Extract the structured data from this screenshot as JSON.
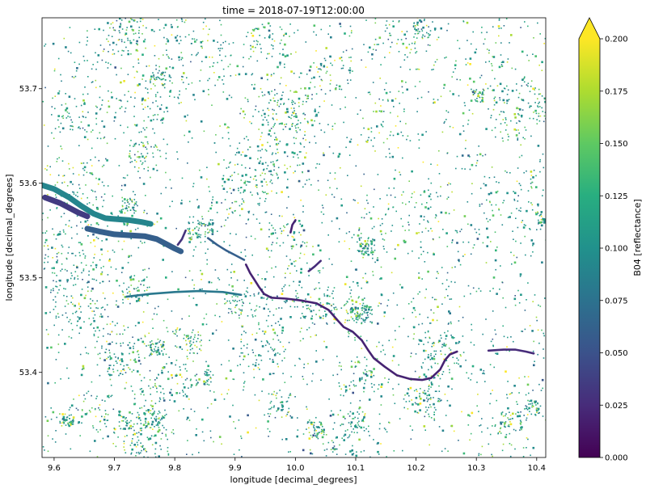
{
  "chart_data": {
    "type": "heatmap",
    "title": "time = 2018-07-19T12:00:00",
    "xlabel": "longitude [decimal_degrees]",
    "ylabel": "longitude [decimal_degrees]",
    "xlim": [
      9.58,
      10.415
    ],
    "ylim": [
      53.31,
      53.775
    ],
    "xticks": [
      {
        "value": 9.6,
        "label": "9.6"
      },
      {
        "value": 9.7,
        "label": "9.7"
      },
      {
        "value": 9.8,
        "label": "9.8"
      },
      {
        "value": 9.9,
        "label": "9.9"
      },
      {
        "value": 10.0,
        "label": "10.0"
      },
      {
        "value": 10.1,
        "label": "10.1"
      },
      {
        "value": 10.2,
        "label": "10.2"
      },
      {
        "value": 10.3,
        "label": "10.3"
      },
      {
        "value": 10.4,
        "label": "10.4"
      }
    ],
    "yticks": [
      {
        "value": 53.4,
        "label": "53.4"
      },
      {
        "value": 53.5,
        "label": "53.5"
      },
      {
        "value": 53.6,
        "label": "53.6"
      },
      {
        "value": 53.7,
        "label": "53.7"
      }
    ],
    "colorbar": {
      "label": "B04 [reflectance]",
      "colormap": "viridis",
      "vmin": 0.0,
      "vmax": 0.2,
      "extend": "max",
      "ticks": [
        {
          "value": 0.0,
          "label": "0.000"
        },
        {
          "value": 0.025,
          "label": "0.025"
        },
        {
          "value": 0.05,
          "label": "0.050"
        },
        {
          "value": 0.075,
          "label": "0.075"
        },
        {
          "value": 0.1,
          "label": "0.100"
        },
        {
          "value": 0.125,
          "label": "0.125"
        },
        {
          "value": 0.15,
          "label": "0.150"
        },
        {
          "value": 0.175,
          "label": "0.175"
        },
        {
          "value": 0.2,
          "label": "0.200"
        }
      ]
    },
    "features": [
      {
        "kind": "band",
        "value": 0.09,
        "points": [
          [
            9.58,
            53.598
          ],
          [
            9.6,
            53.594
          ],
          [
            9.625,
            53.585
          ],
          [
            9.645,
            53.576
          ],
          [
            9.665,
            53.568
          ],
          [
            9.685,
            53.563
          ],
          [
            9.705,
            53.562
          ],
          [
            9.725,
            53.561
          ],
          [
            9.745,
            53.559
          ],
          [
            9.76,
            53.557
          ]
        ]
      },
      {
        "kind": "band",
        "value": 0.035,
        "points": [
          [
            9.585,
            53.585
          ],
          [
            9.61,
            53.579
          ],
          [
            9.625,
            53.574
          ],
          [
            9.64,
            53.569
          ],
          [
            9.655,
            53.565
          ]
        ]
      },
      {
        "kind": "band",
        "value": 0.06,
        "points": [
          [
            9.655,
            53.552
          ],
          [
            9.675,
            53.549
          ],
          [
            9.7,
            53.546
          ],
          [
            9.725,
            53.545
          ],
          [
            9.75,
            53.544
          ],
          [
            9.77,
            53.541
          ],
          [
            9.785,
            53.536
          ],
          [
            9.8,
            53.531
          ],
          [
            9.81,
            53.528
          ]
        ]
      },
      {
        "kind": "line",
        "value": 0.03,
        "points": [
          [
            9.805,
            53.535
          ],
          [
            9.812,
            53.541
          ],
          [
            9.818,
            53.55
          ]
        ]
      },
      {
        "kind": "line",
        "value": 0.06,
        "points": [
          [
            9.855,
            53.542
          ],
          [
            9.87,
            53.535
          ],
          [
            9.885,
            53.529
          ],
          [
            9.9,
            53.524
          ],
          [
            9.915,
            53.519
          ]
        ]
      },
      {
        "kind": "line",
        "value": 0.02,
        "points": [
          [
            9.918,
            53.514
          ],
          [
            9.925,
            53.505
          ],
          [
            9.933,
            53.497
          ],
          [
            9.94,
            53.49
          ],
          [
            9.948,
            53.483
          ],
          [
            9.96,
            53.479
          ]
        ]
      },
      {
        "kind": "line",
        "value": 0.02,
        "points": [
          [
            9.96,
            53.479
          ],
          [
            9.985,
            53.478
          ],
          [
            10.01,
            53.476
          ],
          [
            10.035,
            53.473
          ],
          [
            10.055,
            53.466
          ],
          [
            10.07,
            53.455
          ],
          [
            10.08,
            53.448
          ],
          [
            10.095,
            53.443
          ],
          [
            10.11,
            53.434
          ],
          [
            10.12,
            53.424
          ],
          [
            10.13,
            53.415
          ],
          [
            10.148,
            53.406
          ],
          [
            10.168,
            53.397
          ],
          [
            10.19,
            53.393
          ],
          [
            10.21,
            53.392
          ],
          [
            10.225,
            53.394
          ],
          [
            10.24,
            53.403
          ],
          [
            10.248,
            53.413
          ],
          [
            10.256,
            53.419
          ],
          [
            10.268,
            53.422
          ]
        ]
      },
      {
        "kind": "line",
        "value": 0.025,
        "points": [
          [
            10.32,
            53.423
          ],
          [
            10.345,
            53.424
          ],
          [
            10.365,
            53.424
          ],
          [
            10.382,
            53.422
          ],
          [
            10.395,
            53.42
          ]
        ]
      },
      {
        "kind": "line",
        "value": 0.02,
        "points": [
          [
            9.992,
            53.548
          ],
          [
            9.995,
            53.556
          ],
          [
            10.0,
            53.561
          ]
        ]
      },
      {
        "kind": "line",
        "value": 0.025,
        "points": [
          [
            10.022,
            53.507
          ],
          [
            10.032,
            53.512
          ],
          [
            10.042,
            53.518
          ]
        ]
      },
      {
        "kind": "line",
        "value": 0.08,
        "points": [
          [
            9.72,
            53.48
          ],
          [
            9.76,
            53.483
          ],
          [
            9.8,
            53.485
          ],
          [
            9.84,
            53.486
          ],
          [
            9.88,
            53.485
          ],
          [
            9.91,
            53.482
          ]
        ]
      }
    ]
  }
}
